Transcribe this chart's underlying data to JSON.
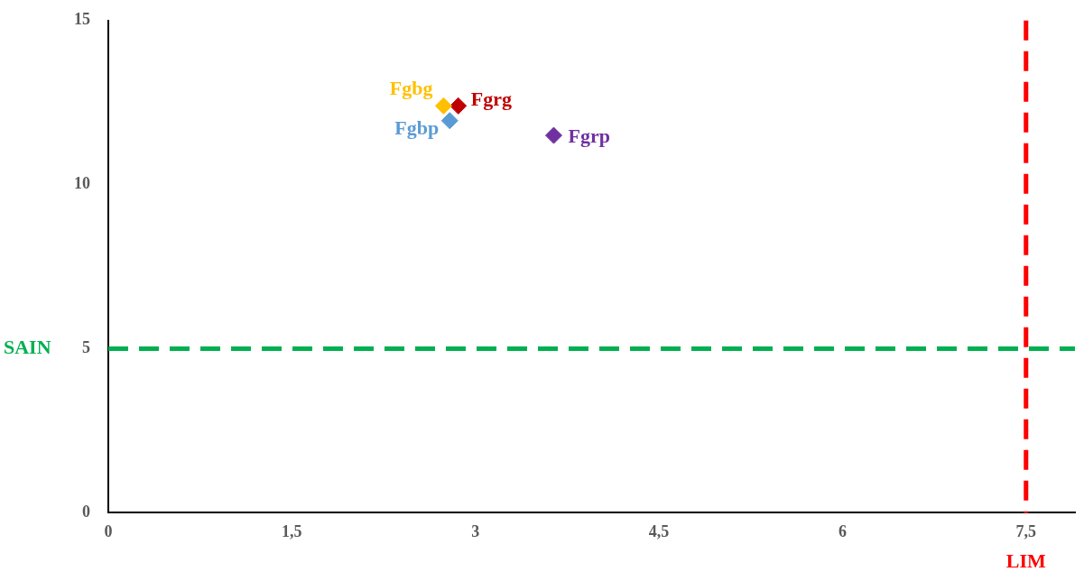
{
  "chart_data": {
    "type": "scatter",
    "marker": "diamond",
    "legend": false,
    "grid": false,
    "xlim": [
      0,
      7.9
    ],
    "xticks": [
      0,
      {
        "value": 1.5,
        "label": "1,5"
      },
      3,
      {
        "value": 4.5,
        "label": "4,5"
      },
      6,
      {
        "value": 7.5,
        "label": "7,5"
      }
    ],
    "ylim": [
      0,
      15
    ],
    "yticks": [
      0,
      5,
      10,
      15
    ],
    "series": [
      {
        "name": "Fgbg",
        "color": "#ffc000",
        "x": [
          2.74
        ],
        "values": [
          12.4
        ]
      },
      {
        "name": "Fgrg",
        "color": "#c00000",
        "x": [
          2.86
        ],
        "values": [
          12.4
        ]
      },
      {
        "name": "Fgbp",
        "color": "#5b9bd5",
        "x": [
          2.79
        ],
        "values": [
          11.95
        ]
      },
      {
        "name": "Fgrp",
        "color": "#7030a0",
        "x": [
          3.64
        ],
        "values": [
          11.5
        ]
      }
    ],
    "ref_lines": [
      {
        "axis": "y",
        "value": 5,
        "label": "SAIN",
        "color": "#00b050",
        "line_style": "dashed"
      },
      {
        "axis": "x",
        "value": 7.5,
        "label": "LIM",
        "color": "#ff0000",
        "line_style": "dashed"
      }
    ]
  }
}
